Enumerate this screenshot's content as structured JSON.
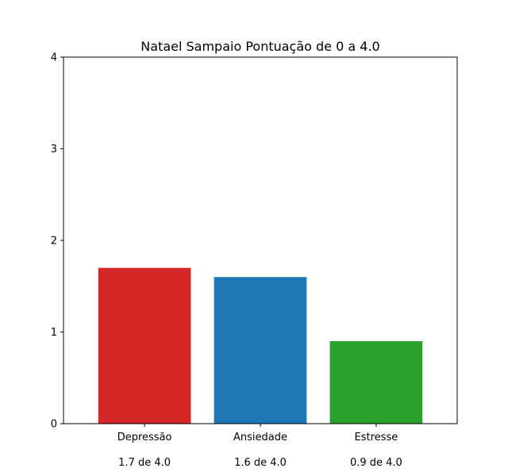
{
  "chart_data": {
    "type": "bar",
    "title": "Natael Sampaio Pontuação de 0 a 4.0",
    "xlabel": "",
    "ylabel": "",
    "ylim": [
      0,
      4
    ],
    "yticks": [
      "0",
      "1",
      "2",
      "3",
      "4"
    ],
    "categories": [
      "Depressão",
      "Ansiedade",
      "Estresse"
    ],
    "values": [
      1.7,
      1.6,
      0.9
    ],
    "value_labels": [
      "1.7 de 4.0",
      "1.6 de 4.0",
      "0.9 de 4.0"
    ],
    "colors": [
      "#d62728",
      "#1f77b4",
      "#2ca02c"
    ],
    "grid": false,
    "legend": "none"
  }
}
